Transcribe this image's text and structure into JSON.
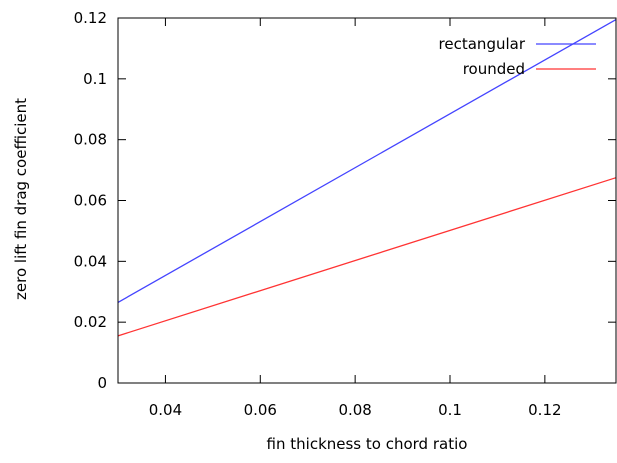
{
  "chart_data": {
    "type": "line",
    "title": "",
    "xlabel": "fin thickness to chord ratio",
    "ylabel": "zero lift fin drag coefficient",
    "xlim": [
      0.03,
      0.135
    ],
    "ylim": [
      0,
      0.12
    ],
    "xticks": [
      {
        "value": 0.04,
        "label": "0.04"
      },
      {
        "value": 0.06,
        "label": "0.06"
      },
      {
        "value": 0.08,
        "label": "0.08"
      },
      {
        "value": 0.1,
        "label": "0.1"
      },
      {
        "value": 0.12,
        "label": "0.12"
      }
    ],
    "yticks": [
      {
        "value": 0,
        "label": "0"
      },
      {
        "value": 0.02,
        "label": "0.02"
      },
      {
        "value": 0.04,
        "label": "0.04"
      },
      {
        "value": 0.06,
        "label": "0.06"
      },
      {
        "value": 0.08,
        "label": "0.08"
      },
      {
        "value": 0.1,
        "label": "0.1"
      },
      {
        "value": 0.12,
        "label": "0.12"
      }
    ],
    "grid": false,
    "legend_position": "top-right",
    "series": [
      {
        "name": "rectangular",
        "color": "#4444ff",
        "x": [
          0.03,
          0.135
        ],
        "y": [
          0.0265,
          0.1195
        ]
      },
      {
        "name": "rounded",
        "color": "#ff3333",
        "x": [
          0.03,
          0.135
        ],
        "y": [
          0.0155,
          0.0675
        ]
      }
    ]
  }
}
